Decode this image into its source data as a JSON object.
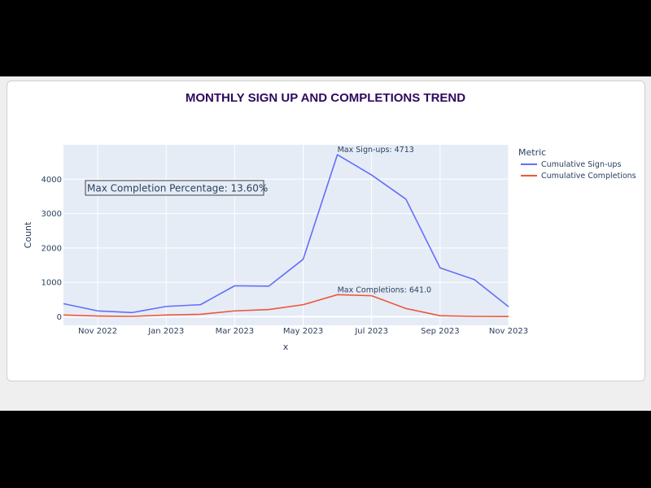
{
  "chart_data": {
    "type": "line",
    "title": "MONTHLY SIGN UP AND COMPLETIONS TREND",
    "xlabel": "x",
    "ylabel": "Count",
    "x": [
      "2022-10",
      "2022-11",
      "2022-12",
      "2023-01",
      "2023-02",
      "2023-03",
      "2023-04",
      "2023-05",
      "2023-06",
      "2023-07",
      "2023-08",
      "2023-09",
      "2023-10",
      "2023-11"
    ],
    "x_ticks": [
      "Nov 2022",
      "Jan 2023",
      "Mar 2023",
      "May 2023",
      "Jul 2023",
      "Sep 2023",
      "Nov 2023"
    ],
    "y_ticks": [
      "0",
      "1000",
      "2000",
      "3000",
      "4000"
    ],
    "ylim": [
      -250,
      5000
    ],
    "grid": true,
    "series": [
      {
        "name": "Cumulative Sign-ups",
        "color": "#636efa",
        "values": [
          380,
          170,
          120,
          300,
          350,
          900,
          890,
          1670,
          4713,
          4120,
          3420,
          1420,
          1080,
          290
        ]
      },
      {
        "name": "Cumulative Completions",
        "color": "#ef553b",
        "values": [
          50,
          20,
          10,
          50,
          70,
          170,
          210,
          350,
          641,
          610,
          240,
          30,
          10,
          5
        ]
      }
    ],
    "annotations": [
      {
        "text": "Max Sign-ups: 4713",
        "x": "2023-06",
        "y": 4713
      },
      {
        "text": "Max Completions: 641.0",
        "x": "2023-06",
        "y": 641
      }
    ],
    "boxed_note": "Max Completion Percentage: 13.60%",
    "legend": {
      "title": "Metric",
      "position": "right"
    }
  }
}
